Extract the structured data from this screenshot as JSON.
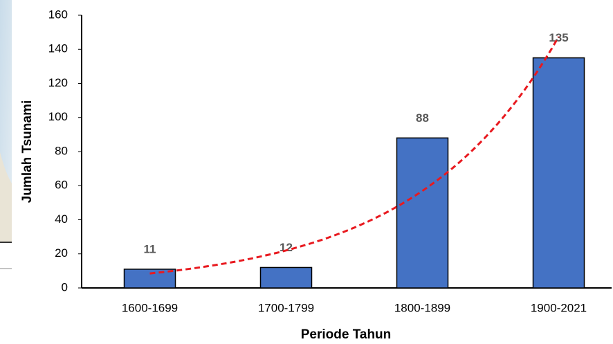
{
  "chart_data": {
    "type": "bar",
    "x_label": "Periode Tahun",
    "y_label": "Jumlah Tsunami",
    "categories": [
      "1600-1699",
      "1700-1799",
      "1800-1899",
      "1900-2021"
    ],
    "values": [
      11,
      12,
      88,
      135
    ],
    "color": "#4472c4",
    "trendline": {
      "type": "exponential",
      "color": "#e8191f"
    },
    "ylim": [
      0,
      160
    ],
    "yticks": [
      0,
      20,
      40,
      60,
      80,
      100,
      120,
      140,
      160
    ],
    "grid": false
  }
}
